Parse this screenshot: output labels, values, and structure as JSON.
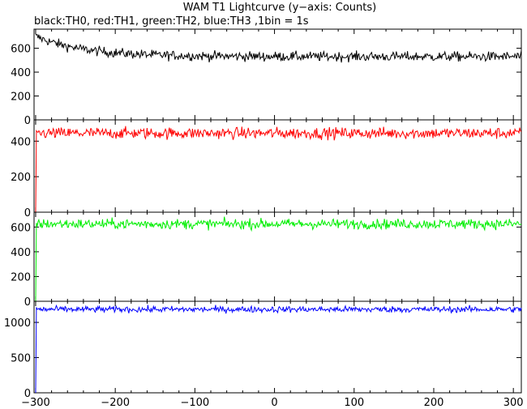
{
  "header": {
    "title": "WAM T1 Lightcurve (y−axis: Counts)",
    "subtitle": "black:TH0, red:TH1, green:TH2, blue:TH3 ,1bin = 1s"
  },
  "chart_data": [
    {
      "type": "line",
      "series": [
        {
          "name": "TH0",
          "color": "#000000",
          "x_range": [
            -300,
            310
          ],
          "start_level": 700,
          "plateau": 530,
          "noise": 20,
          "decay_tau": 60
        }
      ],
      "xlim": [
        -302,
        310
      ],
      "ylim": [
        0,
        760
      ],
      "yticks": [
        0,
        200,
        400,
        600
      ],
      "title": "",
      "xlabel": "",
      "ylabel": ""
    },
    {
      "type": "line",
      "series": [
        {
          "name": "TH1",
          "color": "#ff0000",
          "x_range": [
            -300,
            310
          ],
          "start_level": 0,
          "plateau": 445,
          "noise": 16,
          "rise": true
        }
      ],
      "xlim": [
        -302,
        310
      ],
      "ylim": [
        0,
        520
      ],
      "yticks": [
        0,
        200,
        400
      ],
      "title": "",
      "xlabel": "",
      "ylabel": ""
    },
    {
      "type": "line",
      "series": [
        {
          "name": "TH2",
          "color": "#00ee00",
          "x_range": [
            -300,
            310
          ],
          "start_level": 0,
          "plateau": 625,
          "noise": 20,
          "rise": true
        }
      ],
      "xlim": [
        -302,
        310
      ],
      "ylim": [
        0,
        720
      ],
      "yticks": [
        0,
        200,
        400,
        600
      ],
      "title": "",
      "xlabel": "",
      "ylabel": ""
    },
    {
      "type": "line",
      "series": [
        {
          "name": "TH3",
          "color": "#0000ff",
          "x_range": [
            -300,
            310
          ],
          "start_level": 0,
          "plateau": 1185,
          "noise": 22,
          "rise": true
        }
      ],
      "xlim": [
        -302,
        310
      ],
      "ylim": [
        0,
        1300
      ],
      "yticks": [
        0,
        500,
        1000
      ],
      "xticks": [
        -300,
        -200,
        -100,
        0,
        100,
        200,
        300
      ],
      "title": "",
      "xlabel": "",
      "ylabel": ""
    }
  ]
}
